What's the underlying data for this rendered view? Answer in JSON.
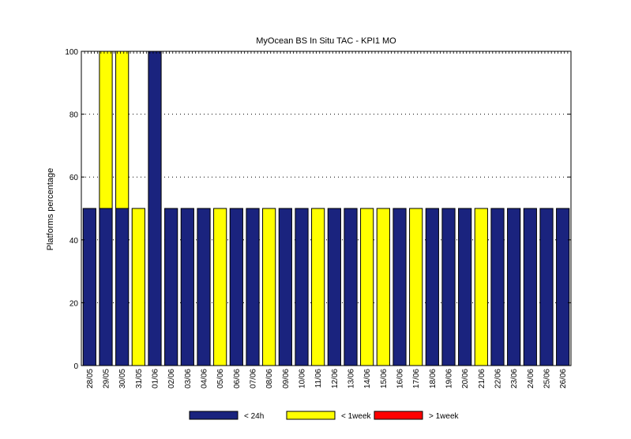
{
  "chart_data": {
    "type": "bar",
    "title": "MyOcean  BS In Situ TAC - KPI1  MO",
    "xlabel": "",
    "ylabel": "Platforms percentage",
    "ylim": [
      0,
      100
    ],
    "yticks": [
      0,
      20,
      40,
      60,
      80,
      100
    ],
    "grid": "horizontal-dotted",
    "legend_position": "bottom",
    "categories": [
      "28/05",
      "29/05",
      "30/05",
      "31/05",
      "01/06",
      "02/06",
      "03/06",
      "04/06",
      "05/06",
      "06/06",
      "07/06",
      "08/06",
      "09/06",
      "10/06",
      "11/06",
      "12/06",
      "13/06",
      "14/06",
      "15/06",
      "16/06",
      "17/06",
      "18/06",
      "19/06",
      "20/06",
      "21/06",
      "22/06",
      "23/06",
      "24/06",
      "25/06",
      "26/06"
    ],
    "series": [
      {
        "name": "< 24h",
        "color": "#1a237e",
        "values": [
          50,
          50,
          50,
          0,
          100,
          50,
          50,
          50,
          0,
          50,
          50,
          0,
          50,
          50,
          0,
          50,
          50,
          0,
          0,
          50,
          0,
          50,
          50,
          50,
          0,
          50,
          50,
          50,
          50,
          50
        ]
      },
      {
        "name": "< 1week",
        "color": "#ffff00",
        "values": [
          0,
          50,
          50,
          50,
          0,
          0,
          0,
          0,
          50,
          0,
          0,
          50,
          0,
          0,
          50,
          0,
          0,
          50,
          50,
          0,
          50,
          0,
          0,
          0,
          50,
          0,
          0,
          0,
          0,
          0
        ]
      },
      {
        "name": "> 1week",
        "color": "#ff0000",
        "values": [
          0,
          0,
          0,
          0,
          0,
          0,
          0,
          0,
          0,
          0,
          0,
          0,
          0,
          0,
          0,
          0,
          0,
          0,
          0,
          0,
          0,
          0,
          0,
          0,
          0,
          0,
          0,
          0,
          0,
          0
        ]
      }
    ]
  }
}
